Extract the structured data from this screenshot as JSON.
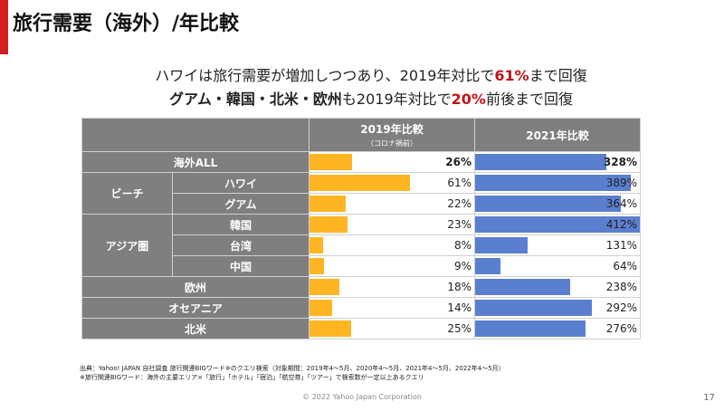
{
  "title": "旅行需要（海外）/年比較",
  "headline": {
    "line1_pre": "ハワイは旅行需要が増加しつつあり、2019年対比で",
    "line1_highlight": "61%",
    "line1_post": "まで回復",
    "line2_bold": "グアム・韓国・北米・欧州",
    "line2_mid": "も2019年対比で",
    "line2_highlight": "20%",
    "line2_post": "前後まで回復"
  },
  "table": {
    "col_2019": "2019年比較",
    "col_2019_sub": "（コロナ禍前）",
    "col_2021": "2021年比較",
    "group_beach": "ビーチ",
    "group_asia": "アジア圏",
    "rows": [
      {
        "label": "海外ALL",
        "v2019": "26%",
        "v2021": "328%"
      },
      {
        "label": "ハワイ",
        "v2019": "61%",
        "v2021": "389%"
      },
      {
        "label": "グアム",
        "v2019": "22%",
        "v2021": "364%"
      },
      {
        "label": "韓国",
        "v2019": "23%",
        "v2021": "412%"
      },
      {
        "label": "台湾",
        "v2019": "8%",
        "v2021": "131%"
      },
      {
        "label": "中国",
        "v2019": "9%",
        "v2021": "64%"
      },
      {
        "label": "欧州",
        "v2019": "18%",
        "v2021": "238%"
      },
      {
        "label": "オセアニア",
        "v2019": "14%",
        "v2021": "292%"
      },
      {
        "label": "北米",
        "v2019": "25%",
        "v2021": "276%"
      }
    ]
  },
  "chart_data": {
    "type": "bar",
    "categories": [
      "海外ALL",
      "ハワイ",
      "グアム",
      "韓国",
      "台湾",
      "中国",
      "欧州",
      "オセアニア",
      "北米"
    ],
    "series": [
      {
        "name": "2019年比較",
        "values": [
          26,
          61,
          22,
          23,
          8,
          9,
          18,
          14,
          25
        ]
      },
      {
        "name": "2021年比較",
        "values": [
          328,
          389,
          364,
          412,
          131,
          64,
          238,
          292,
          276
        ]
      }
    ],
    "scale_max": {
      "2019": 100,
      "2021": 412
    },
    "colors": {
      "2019": "#ffb522",
      "2021": "#5b7fcf"
    }
  },
  "notes": {
    "line1": "出典：Yahoo! JAPAN 自社調査 旅行関連BIGワード※のクエリ検索（対象期間：2019年4～5月、2020年4～5月、2021年4～5月、2022年4～5月）",
    "line2": "※旅行関連BIGワード：海外の主要エリア×「旅行」「ホテル」「宿泊」「航空券」「ツアー」で検索数が一定以上あるクエリ"
  },
  "footer": {
    "copyright": "© 2022 Yahoo Japan Corporation",
    "page": "17"
  }
}
